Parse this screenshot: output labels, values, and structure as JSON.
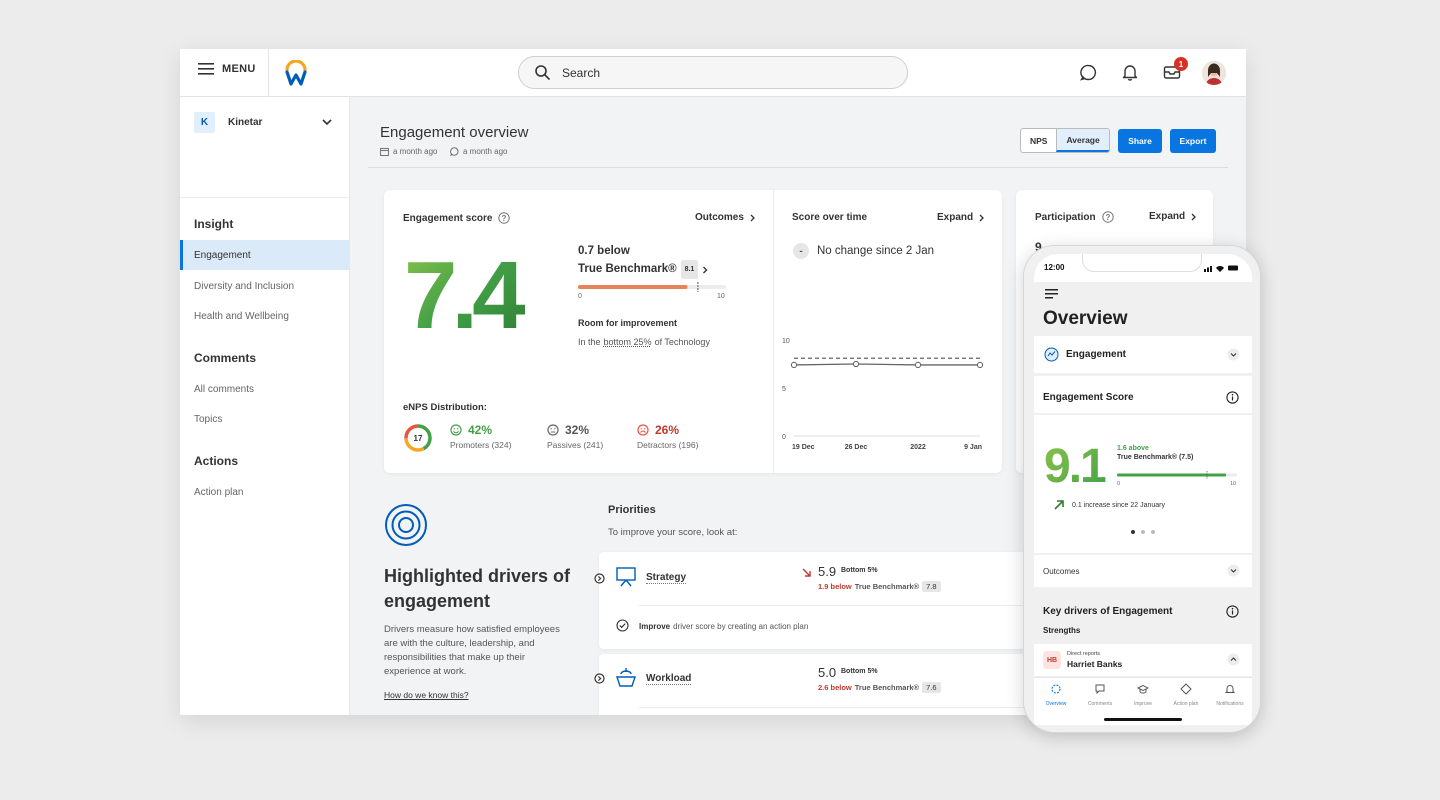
{
  "topbar": {
    "menu_label": "MENU",
    "search_placeholder": "Search",
    "inbox_badge": "1"
  },
  "sidebar": {
    "org_initial": "K",
    "org_name": "Kinetar",
    "sections": [
      {
        "heading": "Insight",
        "items": [
          "Engagement",
          "Diversity and Inclusion",
          "Health and Wellbeing"
        ]
      },
      {
        "heading": "Comments",
        "items": [
          "All comments",
          "Topics"
        ]
      },
      {
        "heading": "Actions",
        "items": [
          "Action plan"
        ]
      }
    ]
  },
  "page": {
    "title": "Engagement overview",
    "updated": "a month ago",
    "commented": "a month ago",
    "toggle": [
      "NPS",
      "Average"
    ],
    "share_label": "Share",
    "export_label": "Export"
  },
  "engagement": {
    "title": "Engagement score",
    "outcomes_label": "Outcomes",
    "score": "7.4",
    "bench_line1": "0.7 below",
    "bench_line2": "True Benchmark®",
    "bench_value": "8.1",
    "bench_fraction": 0.74,
    "scale_min": "0",
    "scale_max": "10",
    "room_label": "Room for improvement",
    "in_the": "In the",
    "bottom_label": "bottom 25%",
    "of_label": "of Technology",
    "enps_title": "eNPS Distribution:",
    "enps_value": "17",
    "enps": [
      {
        "pct": "42%",
        "label": "Promoters (324)",
        "color": "#43a047"
      },
      {
        "pct": "32%",
        "label": "Passives (241)",
        "color": "#555555"
      },
      {
        "pct": "26%",
        "label": "Detractors (196)",
        "color": "#c0392b"
      }
    ]
  },
  "score_time": {
    "title": "Score over time",
    "expand_label": "Expand",
    "change_icon": "-",
    "note": "No change since 2 Jan"
  },
  "chart_data": {
    "type": "line",
    "x": [
      "19 Dec",
      "26 Dec",
      "2022",
      "9 Jan"
    ],
    "y_ticks": [
      "10",
      "5",
      "0"
    ],
    "ylim": [
      0,
      10
    ],
    "series": [
      {
        "values": [
          7.4,
          7.5,
          7.4,
          7.4
        ],
        "style": "solid",
        "color": "#666666"
      },
      {
        "values": [
          8.1,
          8.1,
          8.1,
          8.1
        ],
        "style": "dashed",
        "color": "#666666"
      }
    ]
  },
  "participation": {
    "title": "Participation",
    "expand_label": "Expand",
    "partial_text": "9"
  },
  "drivers": {
    "title": "Highlighted drivers of engagement",
    "description": "Drivers measure how satisfied employees are with the culture, leadership, and responsibilities that make up their experience at work.",
    "link": "How do we know this?"
  },
  "priorities": {
    "title": "Priorities",
    "subtitle": "To improve your score, look at:",
    "items": [
      {
        "name": "Strategy",
        "score": "5.9",
        "tag": "Bottom 5%",
        "below": "1.9 below",
        "bench": "True Benchmark®",
        "bench_value": "7.8",
        "action_bold": "Improve",
        "action_rest": "driver score by creating an action plan"
      },
      {
        "name": "Workload",
        "score": "5.0",
        "tag": "Bottom 5%",
        "below": "2.6 below",
        "bench": "True Benchmark®",
        "bench_value": "7.6"
      }
    ]
  },
  "phone": {
    "time": "12:00",
    "title": "Overview",
    "engagement_label": "Engagement",
    "score_title": "Engagement Score",
    "score": "9.1",
    "above": "1.6 above",
    "bench": "True Benchmark® (7.5)",
    "bench_fraction": 0.91,
    "scale_min": "0",
    "scale_max": "10",
    "increase": "0.1 increase since 22 January",
    "outcomes": "Outcomes",
    "drivers_title": "Key drivers of Engagement",
    "strengths": "Strengths",
    "report_initials": "HB",
    "report_role": "Direct reports",
    "report_name": "Harriet Banks",
    "nav": [
      "Overview",
      "Comments",
      "Improve",
      "Action plan",
      "Notifications"
    ]
  }
}
